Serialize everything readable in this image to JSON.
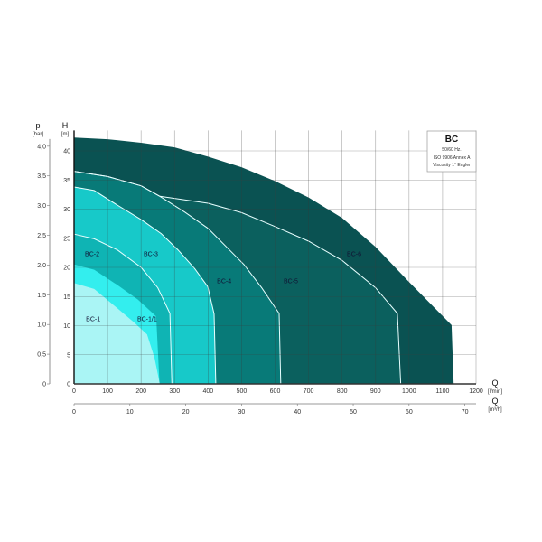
{
  "chart_data": {
    "type": "area",
    "title": "BC",
    "info_box": [
      "50/60 Hz.",
      "ISO 9906 Annex A",
      "Viscosity 1° Engler"
    ],
    "x_axis": {
      "label": "Q",
      "unit": "[l/min]",
      "range": [
        0,
        1200
      ],
      "ticks": [
        0,
        100,
        200,
        300,
        400,
        500,
        600,
        700,
        800,
        900,
        1000,
        1100,
        1200
      ]
    },
    "x2_axis": {
      "label": "Q",
      "unit": "[m³/h]",
      "range": [
        0,
        72
      ],
      "ticks": [
        0,
        10,
        20,
        30,
        40,
        50,
        60,
        70
      ]
    },
    "y_axis": {
      "label": "H",
      "unit": "[m]",
      "range": [
        0,
        43.5
      ],
      "ticks": [
        0,
        5,
        10,
        15,
        20,
        25,
        30,
        35,
        40
      ]
    },
    "y2_axis": {
      "label": "p",
      "unit": "[bar]",
      "ticks": [
        "0",
        "0,5",
        "1,0",
        "1,5",
        "2,0",
        "2,5",
        "3,0",
        "3,5",
        "4,0"
      ],
      "values": [
        0,
        0.5,
        1.0,
        1.5,
        2.0,
        2.5,
        3.0,
        3.5,
        4.0
      ]
    },
    "grid": true,
    "series": [
      {
        "name": "BC-6",
        "color": "#0a5252",
        "outline": false,
        "label_at": [
          836,
          22.3
        ],
        "points": [
          [
            0,
            42.3
          ],
          [
            100,
            42
          ],
          [
            200,
            41.4
          ],
          [
            300,
            40.6
          ],
          [
            400,
            39
          ],
          [
            500,
            37.2
          ],
          [
            600,
            34.8
          ],
          [
            700,
            32
          ],
          [
            800,
            28.5
          ],
          [
            900,
            23.5
          ],
          [
            1000,
            17.5
          ],
          [
            1127,
            10.1
          ],
          [
            1133,
            0
          ]
        ]
      },
      {
        "name": "BC-5",
        "color": "#0b605e",
        "outline": true,
        "label_at": [
          647,
          17.7
        ],
        "points": [
          [
            0,
            36.5
          ],
          [
            100,
            35.6
          ],
          [
            200,
            34
          ],
          [
            256,
            32.2
          ],
          [
            400,
            31
          ],
          [
            500,
            29.4
          ],
          [
            600,
            27
          ],
          [
            700,
            24.5
          ],
          [
            800,
            21.2
          ],
          [
            900,
            16.5
          ],
          [
            965,
            12.1
          ],
          [
            975,
            0
          ]
        ]
      },
      {
        "name": "BC-4",
        "color": "#087a78",
        "outline": true,
        "label_at": [
          448,
          17.7
        ],
        "points": [
          [
            0,
            36.5
          ],
          [
            100,
            35.6
          ],
          [
            200,
            34
          ],
          [
            256,
            32.2
          ],
          [
            330,
            29.5
          ],
          [
            400,
            26.7
          ],
          [
            507,
            20.5
          ],
          [
            560,
            16.5
          ],
          [
            612,
            12.1
          ],
          [
            617,
            0
          ]
        ]
      },
      {
        "name": "BC-3",
        "color": "#17c9c9",
        "outline": true,
        "label_at": [
          229,
          22.3
        ],
        "points": [
          [
            0,
            33.8
          ],
          [
            60,
            33.2
          ],
          [
            129,
            30.7
          ],
          [
            200,
            28.2
          ],
          [
            260,
            25.8
          ],
          [
            310,
            23
          ],
          [
            360,
            19.8
          ],
          [
            399,
            16.7
          ],
          [
            418,
            12
          ],
          [
            423,
            0
          ]
        ]
      },
      {
        "name": "BC-2",
        "color": "#0fb4b4",
        "outline": true,
        "label_at": [
          54,
          22.3
        ],
        "points": [
          [
            0,
            25.7
          ],
          [
            60,
            24.9
          ],
          [
            129,
            23
          ],
          [
            200,
            20
          ],
          [
            250,
            16.5
          ],
          [
            286,
            12.1
          ],
          [
            292,
            0
          ]
        ]
      },
      {
        "name": "BC-1/1",
        "color": "#33eeee",
        "outline": false,
        "label_at": [
          218,
          11.2
        ],
        "points": [
          [
            0,
            20.5
          ],
          [
            60,
            19.6
          ],
          [
            129,
            17
          ],
          [
            190,
            14.5
          ],
          [
            245,
            11.6
          ],
          [
            255,
            0
          ]
        ]
      },
      {
        "name": "BC-1",
        "color": "#aaf5f5",
        "outline": false,
        "label_at": [
          57,
          11.2
        ],
        "points": [
          [
            0,
            17.3
          ],
          [
            60,
            16.3
          ],
          [
            129,
            13
          ],
          [
            180,
            10.5
          ],
          [
            218,
            8.5
          ],
          [
            240,
            4.5
          ],
          [
            256,
            0
          ]
        ]
      }
    ]
  }
}
